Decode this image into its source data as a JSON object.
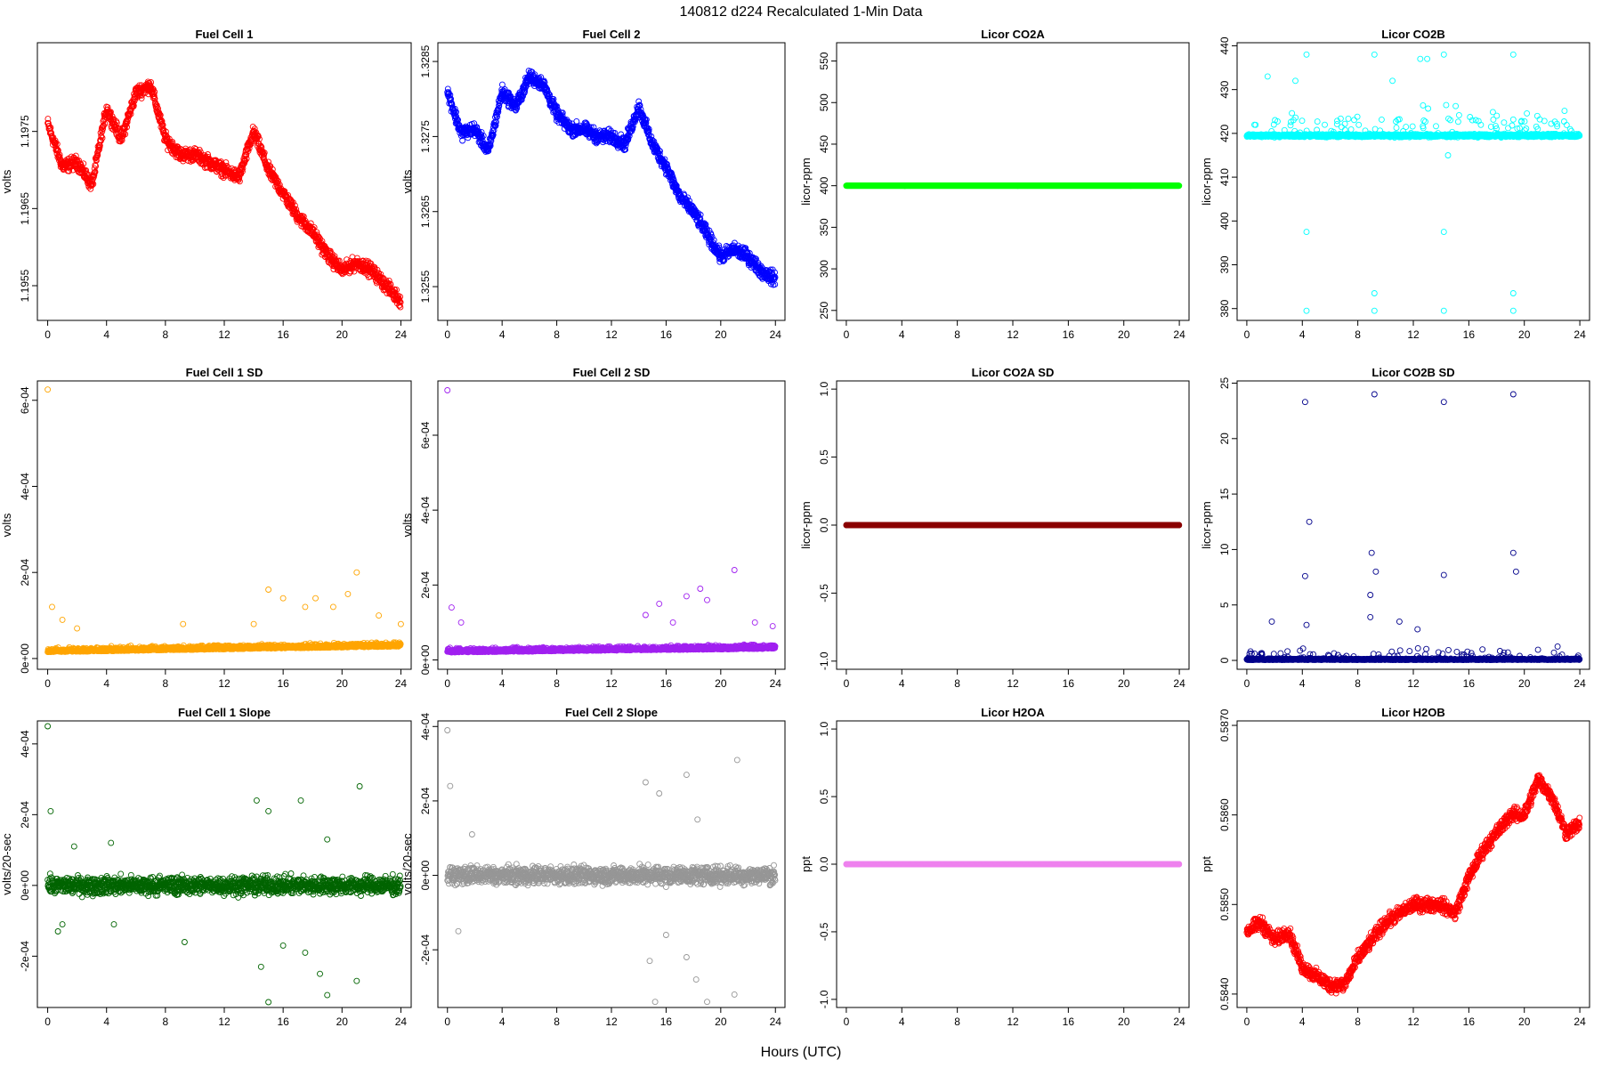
{
  "figure": {
    "title": "140812    d224    Recalculated 1-Min Data",
    "xlabel": "Hours (UTC)"
  },
  "chart_data": [
    {
      "type": "scatter",
      "title": "Fuel Cell 1",
      "ylabel": "volts",
      "color": "#ff0000",
      "xlim": [
        -0.7,
        24.7
      ],
      "ylim": [
        1.19505,
        1.19865
      ],
      "xticks": [
        "0",
        "4",
        "8",
        "12",
        "16",
        "20",
        "24"
      ],
      "yticks": [
        "1.1955",
        "1.1965",
        "1.1975"
      ],
      "profile": [
        [
          0,
          1.1976
        ],
        [
          1,
          1.19705
        ],
        [
          2,
          1.1971
        ],
        [
          3,
          1.1968
        ],
        [
          4,
          1.1978
        ],
        [
          5,
          1.1974
        ],
        [
          6,
          1.198
        ],
        [
          7,
          1.1981
        ],
        [
          8,
          1.1974
        ],
        [
          9,
          1.1972
        ],
        [
          10,
          1.1972
        ],
        [
          11,
          1.1971
        ],
        [
          12,
          1.197
        ],
        [
          13,
          1.1969
        ],
        [
          14,
          1.1975
        ],
        [
          15,
          1.197
        ],
        [
          16,
          1.1967
        ],
        [
          17,
          1.1964
        ],
        [
          18,
          1.1962
        ],
        [
          19,
          1.1959
        ],
        [
          20,
          1.1957
        ],
        [
          21,
          1.1958
        ],
        [
          22,
          1.1957
        ],
        [
          23,
          1.1955
        ],
        [
          24,
          1.1953
        ]
      ],
      "outliers": []
    },
    {
      "type": "scatter",
      "title": "Fuel Cell 2",
      "ylabel": "volts",
      "color": "#0000ff",
      "xlim": [
        -0.7,
        24.7
      ],
      "ylim": [
        1.32505,
        1.32875
      ],
      "xticks": [
        "0",
        "4",
        "8",
        "12",
        "16",
        "20",
        "24"
      ],
      "yticks": [
        "1.3255",
        "1.3265",
        "1.3275",
        "1.3285"
      ],
      "profile": [
        [
          0,
          1.3281
        ],
        [
          1,
          1.32755
        ],
        [
          2,
          1.3276
        ],
        [
          3,
          1.3273
        ],
        [
          4,
          1.3281
        ],
        [
          5,
          1.3279
        ],
        [
          6,
          1.3283
        ],
        [
          7,
          1.3282
        ],
        [
          8,
          1.3278
        ],
        [
          9,
          1.3276
        ],
        [
          10,
          1.3276
        ],
        [
          11,
          1.3275
        ],
        [
          12,
          1.3275
        ],
        [
          13,
          1.3274
        ],
        [
          14,
          1.3279
        ],
        [
          15,
          1.3274
        ],
        [
          16,
          1.3271
        ],
        [
          17,
          1.3267
        ],
        [
          18,
          1.3265
        ],
        [
          19,
          1.3262
        ],
        [
          20,
          1.3259
        ],
        [
          21,
          1.326
        ],
        [
          22,
          1.3259
        ],
        [
          23,
          1.3257
        ],
        [
          24,
          1.3256
        ]
      ],
      "outliers": []
    },
    {
      "type": "scatter",
      "title": "Licor CO2A",
      "ylabel": "licor-ppm",
      "color": "#00ff00",
      "xlim": [
        -0.7,
        24.7
      ],
      "ylim": [
        238,
        572
      ],
      "xticks": [
        "0",
        "4",
        "8",
        "12",
        "16",
        "20",
        "24"
      ],
      "yticks": [
        "250",
        "300",
        "350",
        "400",
        "450",
        "500",
        "550"
      ],
      "profile": [
        [
          0,
          400
        ],
        [
          24,
          400
        ]
      ],
      "outliers": []
    },
    {
      "type": "scatter",
      "title": "Licor CO2B",
      "ylabel": "licor-ppm",
      "color": "#00ffff",
      "xlim": [
        -0.7,
        24.7
      ],
      "ylim": [
        377.3,
        440.7
      ],
      "xticks": [
        "0",
        "4",
        "8",
        "12",
        "16",
        "20",
        "24"
      ],
      "yticks": [
        "380",
        "390",
        "400",
        "410",
        "420",
        "430",
        "440"
      ],
      "profile": [
        [
          0,
          419.5
        ],
        [
          24,
          419.5
        ]
      ],
      "outliers": [
        [
          4.3,
          438
        ],
        [
          4.3,
          397.5
        ],
        [
          4.3,
          379.5
        ],
        [
          9.2,
          438
        ],
        [
          9.2,
          383.5
        ],
        [
          9.2,
          379.5
        ],
        [
          14.2,
          438
        ],
        [
          14.2,
          397.5
        ],
        [
          14.2,
          379.5
        ],
        [
          19.2,
          438
        ],
        [
          19.2,
          383.5
        ],
        [
          19.2,
          379.5
        ],
        [
          1.5,
          433
        ],
        [
          3.5,
          432
        ],
        [
          10.5,
          432
        ],
        [
          12.5,
          437
        ],
        [
          13,
          437
        ],
        [
          14.5,
          415
        ]
      ]
    },
    {
      "type": "scatter",
      "title": "Fuel Cell 1 SD",
      "ylabel": "volts",
      "color": "#ffa500",
      "xlim": [
        -0.7,
        24.7
      ],
      "ylim": [
        -2.5e-05,
        0.000645
      ],
      "xticks": [
        "0",
        "4",
        "8",
        "12",
        "16",
        "20",
        "24"
      ],
      "yticks": [
        "0e+00",
        "2e-04",
        "4e-04",
        "6e-04"
      ],
      "profile": [
        [
          0,
          1.5e-05
        ],
        [
          24,
          2.8e-05
        ]
      ],
      "outliers": [
        [
          0,
          0.000625
        ],
        [
          0.3,
          0.00012
        ],
        [
          1,
          9e-05
        ],
        [
          2,
          7e-05
        ],
        [
          9.2,
          8e-05
        ],
        [
          14,
          8e-05
        ],
        [
          15,
          0.00016
        ],
        [
          16,
          0.00014
        ],
        [
          17.5,
          0.00012
        ],
        [
          18.2,
          0.00014
        ],
        [
          19.4,
          0.00012
        ],
        [
          20.4,
          0.00015
        ],
        [
          21,
          0.0002
        ],
        [
          22.5,
          0.0001
        ],
        [
          24,
          8e-05
        ]
      ]
    },
    {
      "type": "scatter",
      "title": "Fuel Cell 2 SD",
      "ylabel": "volts",
      "color": "#a020f0",
      "xlim": [
        -0.7,
        24.7
      ],
      "ylim": [
        -2.5e-05,
        0.000745
      ],
      "xticks": [
        "0",
        "4",
        "8",
        "12",
        "16",
        "20",
        "24"
      ],
      "yticks": [
        "0e+00",
        "2e-04",
        "4e-04",
        "6e-04"
      ],
      "profile": [
        [
          0,
          2e-05
        ],
        [
          24,
          3e-05
        ]
      ],
      "outliers": [
        [
          0,
          0.00072
        ],
        [
          0.3,
          0.00014
        ],
        [
          1,
          0.0001
        ],
        [
          14.5,
          0.00012
        ],
        [
          15.5,
          0.00015
        ],
        [
          16.5,
          0.0001
        ],
        [
          17.5,
          0.00017
        ],
        [
          18.5,
          0.00019
        ],
        [
          19,
          0.00016
        ],
        [
          21,
          0.00024
        ],
        [
          22.5,
          0.0001
        ],
        [
          23.8,
          9e-05
        ]
      ]
    },
    {
      "type": "scatter",
      "title": "Licor CO2A SD",
      "ylabel": "licor-ppm",
      "color": "#8b0000",
      "xlim": [
        -0.7,
        24.7
      ],
      "ylim": [
        -1.06,
        1.06
      ],
      "xticks": [
        "0",
        "4",
        "8",
        "12",
        "16",
        "20",
        "24"
      ],
      "yticks": [
        "-1.0",
        "-0.5",
        "0.0",
        "0.5",
        "1.0"
      ],
      "profile": [
        [
          0,
          0
        ],
        [
          24,
          0
        ]
      ],
      "outliers": []
    },
    {
      "type": "scatter",
      "title": "Licor CO2B SD",
      "ylabel": "licor-ppm",
      "color": "#00008b",
      "xlim": [
        -0.7,
        24.7
      ],
      "ylim": [
        -0.8,
        25.2
      ],
      "xticks": [
        "0",
        "4",
        "8",
        "12",
        "16",
        "20",
        "24"
      ],
      "yticks": [
        "0",
        "5",
        "10",
        "15",
        "20",
        "25"
      ],
      "profile": [
        [
          0,
          0.05
        ],
        [
          24,
          0.05
        ]
      ],
      "outliers": [
        [
          4.2,
          23.3
        ],
        [
          4.5,
          12.5
        ],
        [
          4.2,
          7.6
        ],
        [
          9.2,
          24
        ],
        [
          9,
          9.7
        ],
        [
          9.3,
          8
        ],
        [
          8.9,
          5.9
        ],
        [
          8.9,
          3.9
        ],
        [
          14.2,
          23.3
        ],
        [
          14.2,
          7.7
        ],
        [
          19.2,
          24
        ],
        [
          19.2,
          9.7
        ],
        [
          19.4,
          8
        ],
        [
          1.8,
          3.5
        ],
        [
          4.3,
          3.2
        ],
        [
          11,
          3.5
        ],
        [
          12.3,
          2.8
        ]
      ]
    },
    {
      "type": "scatter",
      "title": "Fuel Cell 1 Slope",
      "ylabel": "volts/20-sec",
      "color": "#006400",
      "xlim": [
        -0.7,
        24.7
      ],
      "ylim": [
        -0.000345,
        0.000465
      ],
      "xticks": [
        "0",
        "4",
        "8",
        "12",
        "16",
        "20",
        "24"
      ],
      "yticks": [
        "-2e-04",
        "0e+00",
        "2e-04",
        "4e-04"
      ],
      "profile": [
        [
          0,
          0
        ],
        [
          24,
          0
        ]
      ],
      "outliers": [
        [
          0,
          0.00045
        ],
        [
          0.2,
          0.00021
        ],
        [
          1.8,
          0.00011
        ],
        [
          4.3,
          0.00012
        ],
        [
          0.7,
          -0.00013
        ],
        [
          1,
          -0.00011
        ],
        [
          4.5,
          -0.00011
        ],
        [
          9.3,
          -0.00016
        ],
        [
          14.2,
          0.00024
        ],
        [
          15,
          0.00021
        ],
        [
          17.2,
          0.00024
        ],
        [
          19,
          0.00013
        ],
        [
          21.2,
          0.00028
        ],
        [
          14.5,
          -0.00023
        ],
        [
          15,
          -0.00033
        ],
        [
          16,
          -0.00017
        ],
        [
          17.5,
          -0.00019
        ],
        [
          18.5,
          -0.00025
        ],
        [
          19,
          -0.00031
        ],
        [
          21,
          -0.00027
        ]
      ]
    },
    {
      "type": "scatter",
      "title": "Fuel Cell 2 Slope",
      "ylabel": "volts/20-sec",
      "color": "#969696",
      "xlim": [
        -0.7,
        24.7
      ],
      "ylim": [
        -0.000355,
        0.000415
      ],
      "xticks": [
        "0",
        "4",
        "8",
        "12",
        "16",
        "20",
        "24"
      ],
      "yticks": [
        "-2e-04",
        "0e+00",
        "2e-04",
        "4e-04"
      ],
      "profile": [
        [
          0,
          0
        ],
        [
          24,
          0
        ]
      ],
      "outliers": [
        [
          0,
          0.00039
        ],
        [
          0.2,
          0.00024
        ],
        [
          1.8,
          0.00011
        ],
        [
          0.8,
          -0.00015
        ],
        [
          14.5,
          0.00025
        ],
        [
          15.5,
          0.00022
        ],
        [
          17.5,
          0.00027
        ],
        [
          18.3,
          0.00015
        ],
        [
          21.2,
          0.00031
        ],
        [
          14.8,
          -0.00023
        ],
        [
          15.2,
          -0.00034
        ],
        [
          16,
          -0.00016
        ],
        [
          17.5,
          -0.00022
        ],
        [
          18.2,
          -0.00028
        ],
        [
          19,
          -0.00034
        ],
        [
          21,
          -0.00032
        ]
      ]
    },
    {
      "type": "scatter",
      "title": "Licor H2OA",
      "ylabel": "ppt",
      "color": "#ee82ee",
      "xlim": [
        -0.7,
        24.7
      ],
      "ylim": [
        -1.06,
        1.06
      ],
      "xticks": [
        "0",
        "4",
        "8",
        "12",
        "16",
        "20",
        "24"
      ],
      "yticks": [
        "-1.0",
        "-0.5",
        "0.0",
        "0.5",
        "1.0"
      ],
      "profile": [
        [
          0,
          0
        ],
        [
          24,
          0
        ]
      ],
      "outliers": []
    },
    {
      "type": "scatter",
      "title": "Licor H2OB",
      "ylabel": "ppt",
      "color": "#ff0000",
      "xlim": [
        -0.7,
        24.7
      ],
      "ylim": [
        0.58385,
        0.58705
      ],
      "xticks": [
        "0",
        "4",
        "8",
        "12",
        "16",
        "20",
        "24"
      ],
      "yticks": [
        "0.5840",
        "0.5850",
        "0.5860",
        "0.5870"
      ],
      "profile": [
        [
          0,
          0.5847
        ],
        [
          1,
          0.5848
        ],
        [
          2,
          0.5846
        ],
        [
          3,
          0.5847
        ],
        [
          4,
          0.5843
        ],
        [
          5,
          0.5842
        ],
        [
          6,
          0.5841
        ],
        [
          7,
          0.5841
        ],
        [
          8,
          0.5844
        ],
        [
          9,
          0.5846
        ],
        [
          10,
          0.5848
        ],
        [
          11,
          0.5849
        ],
        [
          12,
          0.585
        ],
        [
          13,
          0.585
        ],
        [
          14,
          0.585
        ],
        [
          15,
          0.5849
        ],
        [
          16,
          0.5853
        ],
        [
          17,
          0.5856
        ],
        [
          18,
          0.5858
        ],
        [
          19,
          0.586
        ],
        [
          20,
          0.586
        ],
        [
          21,
          0.5864
        ],
        [
          22,
          0.5862
        ],
        [
          23,
          0.5858
        ],
        [
          24,
          0.5859
        ]
      ],
      "outliers": []
    }
  ]
}
